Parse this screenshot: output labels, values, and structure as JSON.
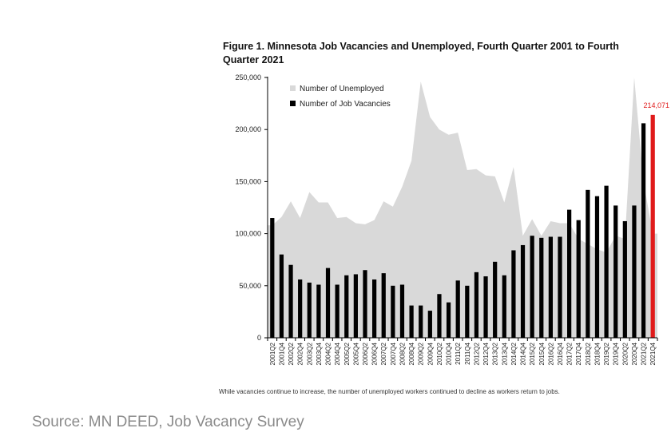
{
  "chart_data": {
    "type": "bar",
    "title": "Figure 1. Minnesota Job Vacancies and Unemployed, Fourth Quarter 2001 to Fourth Quarter 2021",
    "xlabel": "",
    "ylabel": "",
    "ylim": [
      0,
      250000
    ],
    "yticks": [
      "0",
      "50,000",
      "100,000",
      "150,000",
      "200,000",
      "250,000"
    ],
    "ytick_values": [
      0,
      50000,
      100000,
      150000,
      200000,
      250000
    ],
    "grid": false,
    "legend": "top-left",
    "categories": [
      "2001Q2",
      "2001Q4",
      "2002Q2",
      "2002Q4",
      "2003Q2",
      "2003Q4",
      "2004Q2",
      "2004Q4",
      "2005Q2",
      "2005Q4",
      "2006Q2",
      "2006Q4",
      "2007Q2",
      "2007Q4",
      "2008Q2",
      "2008Q4",
      "2009Q2",
      "2009Q4",
      "2010Q2",
      "2010Q4",
      "2011Q2",
      "2011Q4",
      "2012Q2",
      "2012Q4",
      "2013Q2",
      "2013Q4",
      "2014Q2",
      "2014Q4",
      "2015Q2",
      "2015Q4",
      "2016Q2",
      "2016Q4",
      "2017Q2",
      "2017Q4",
      "2018Q2",
      "2018Q4",
      "2019Q2",
      "2019Q4",
      "2020Q2",
      "2020Q4",
      "2021Q2",
      "2021Q4"
    ],
    "series": [
      {
        "name": "Number of Unemployed",
        "type": "area",
        "color": "#d9d9d9",
        "values": [
          108000,
          116000,
          131000,
          115000,
          140000,
          130000,
          130000,
          115000,
          116000,
          110000,
          109000,
          113000,
          131000,
          126000,
          145000,
          170000,
          246000,
          212000,
          200000,
          195000,
          197000,
          161000,
          162000,
          156000,
          155000,
          130000,
          164000,
          98000,
          114000,
          98000,
          112000,
          110000,
          110000,
          95000,
          90000,
          85000,
          82000,
          98000,
          95000,
          250000,
          150000,
          100000
        ]
      },
      {
        "name": "Number of Job Vacancies",
        "type": "bar",
        "color": "#000000",
        "values": [
          115000,
          80000,
          70000,
          56000,
          53000,
          51000,
          67000,
          51000,
          60000,
          61000,
          65000,
          56000,
          62000,
          50000,
          51000,
          31000,
          31000,
          26000,
          42000,
          34000,
          55000,
          50000,
          63000,
          59000,
          73000,
          60000,
          84000,
          89000,
          98000,
          96000,
          97000,
          97000,
          123000,
          113000,
          142000,
          136000,
          146000,
          127000,
          112000,
          127000,
          206000,
          214071
        ]
      }
    ],
    "highlight": {
      "category": "2021Q4",
      "label": "214,071",
      "color": "#e01b1b"
    }
  },
  "footnote": "While vacancies continue to increase, the number of unemployed workers continued to decline as workers return to jobs.",
  "source": "Source: MN DEED, Job Vacancy Survey"
}
